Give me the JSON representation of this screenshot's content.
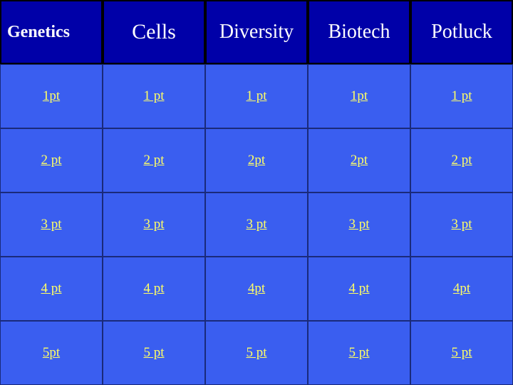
{
  "categories": [
    "Genetics",
    "Cells",
    "Diversity",
    "Biotech",
    "Potluck"
  ],
  "rows": [
    [
      "1pt",
      "1 pt",
      "1 pt",
      "1pt",
      "1 pt"
    ],
    [
      "2 pt",
      "2 pt",
      "2pt",
      "2pt",
      "2 pt"
    ],
    [
      "3 pt",
      "3 pt",
      "3 pt",
      "3 pt",
      "3 pt"
    ],
    [
      "4 pt",
      "4 pt",
      "4pt",
      "4 pt",
      "4pt"
    ],
    [
      "5pt",
      "5 pt",
      "5 pt",
      "5 pt",
      "5 pt"
    ]
  ],
  "colors": {
    "header_bg": "#0000a8",
    "cell_bg": "#3a5ef0",
    "link": "#ffff66",
    "header_text": "#ffffff"
  }
}
